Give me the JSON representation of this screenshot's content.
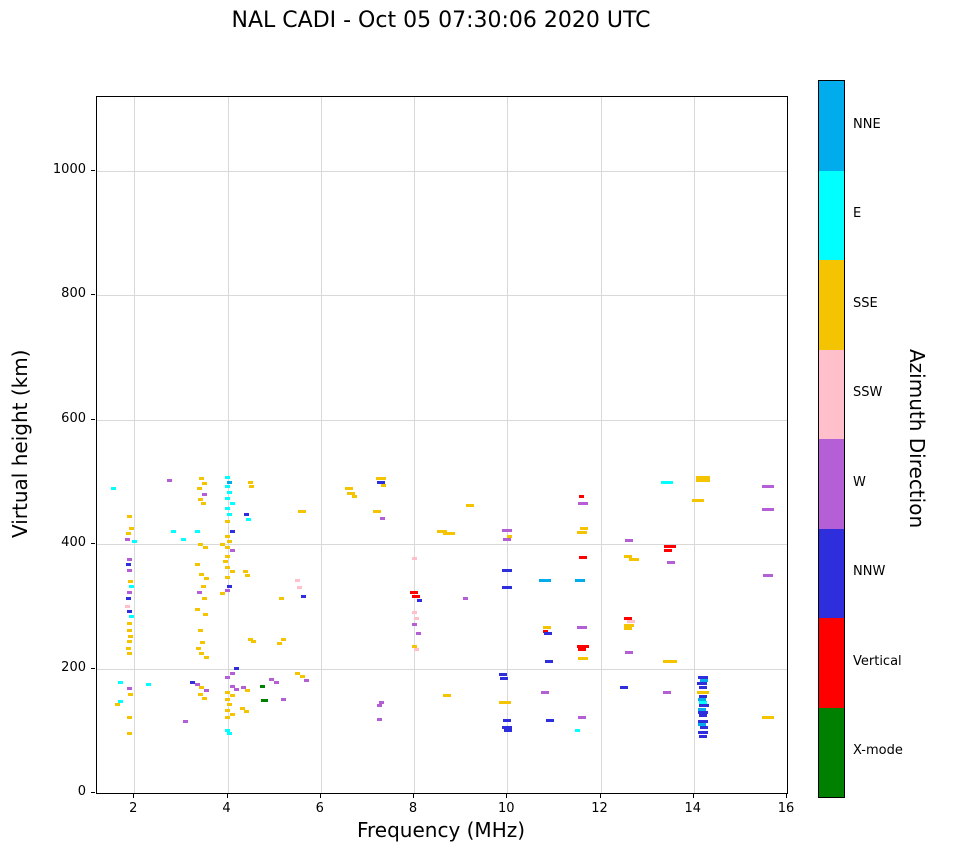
{
  "chart_data": {
    "type": "scatter",
    "title": "NAL CADI - Oct 05 07:30:06 2020 UTC",
    "xlabel": "Frequency (MHz)",
    "ylabel": "Virtual height (km)",
    "xlim": [
      1.2,
      16
    ],
    "ylim": [
      0,
      1119
    ],
    "xticks": [
      2,
      4,
      6,
      8,
      10,
      12,
      14,
      16
    ],
    "yticks": [
      0,
      200,
      400,
      600,
      800,
      1000
    ],
    "grid": true,
    "colorbar": {
      "title": "Azimuth Direction",
      "categories": [
        {
          "label": "NNE",
          "color": "#00ACEC"
        },
        {
          "label": "E",
          "color": "#00FFFF"
        },
        {
          "label": "SSE",
          "color": "#F5C400"
        },
        {
          "label": "SSW",
          "color": "#FFBFCB"
        },
        {
          "label": "W",
          "color": "#B45FD6"
        },
        {
          "label": "NNW",
          "color": "#2E2EDC"
        },
        {
          "label": "Vertical",
          "color": "#FF0000"
        },
        {
          "label": "X-mode",
          "color": "#008000"
        }
      ]
    },
    "points": [
      [
        1.55,
        490,
        "E"
      ],
      [
        1.9,
        445,
        "SSE"
      ],
      [
        1.95,
        425,
        "SSE"
      ],
      [
        1.88,
        418,
        "SSE"
      ],
      [
        1.85,
        408,
        "W"
      ],
      [
        2.0,
        405,
        "E"
      ],
      [
        1.9,
        375,
        "W"
      ],
      [
        1.88,
        368,
        "NNW"
      ],
      [
        1.9,
        358,
        "W"
      ],
      [
        1.92,
        340,
        "SSE"
      ],
      [
        1.95,
        332,
        "E"
      ],
      [
        1.9,
        322,
        "W"
      ],
      [
        1.88,
        312,
        "NNW"
      ],
      [
        1.85,
        300,
        "SSW"
      ],
      [
        1.9,
        292,
        "NNW"
      ],
      [
        1.95,
        283,
        "E"
      ],
      [
        1.9,
        272,
        "SSE"
      ],
      [
        1.9,
        262,
        "SSE"
      ],
      [
        1.92,
        252,
        "SSE"
      ],
      [
        1.9,
        243,
        "SSE"
      ],
      [
        1.88,
        232,
        "SSE"
      ],
      [
        1.9,
        225,
        "SSE"
      ],
      [
        1.7,
        178,
        "E"
      ],
      [
        2.3,
        175,
        "E"
      ],
      [
        1.9,
        168,
        "W"
      ],
      [
        1.92,
        158,
        "SSE"
      ],
      [
        1.7,
        147,
        "E"
      ],
      [
        1.65,
        143,
        "SSE"
      ],
      [
        1.9,
        122,
        "SSE"
      ],
      [
        1.9,
        95,
        "SSE"
      ],
      [
        2.75,
        502,
        "W"
      ],
      [
        2.85,
        420,
        "E"
      ],
      [
        3.05,
        408,
        "E"
      ],
      [
        3.1,
        115,
        "W"
      ],
      [
        3.45,
        505,
        "SSE"
      ],
      [
        3.5,
        498,
        "SSE"
      ],
      [
        3.4,
        490,
        "SSE"
      ],
      [
        3.5,
        480,
        "W"
      ],
      [
        3.42,
        472,
        "SSE"
      ],
      [
        3.48,
        465,
        "SSE"
      ],
      [
        3.35,
        420,
        "E"
      ],
      [
        3.42,
        400,
        "SSE"
      ],
      [
        3.52,
        395,
        "SSE"
      ],
      [
        3.35,
        367,
        "SSE"
      ],
      [
        3.45,
        352,
        "SSE"
      ],
      [
        3.55,
        345,
        "SSE"
      ],
      [
        3.48,
        332,
        "SSE"
      ],
      [
        3.4,
        322,
        "W"
      ],
      [
        3.5,
        312,
        "SSE"
      ],
      [
        3.35,
        295,
        "SSE"
      ],
      [
        3.52,
        287,
        "SSE"
      ],
      [
        3.42,
        262,
        "SSE"
      ],
      [
        3.46,
        242,
        "SSE"
      ],
      [
        3.38,
        232,
        "SSE"
      ],
      [
        3.45,
        225,
        "SSE"
      ],
      [
        3.55,
        218,
        "SSE"
      ],
      [
        3.25,
        178,
        "NNW"
      ],
      [
        3.35,
        174,
        "W"
      ],
      [
        3.45,
        170,
        "SSE"
      ],
      [
        3.55,
        165,
        "W"
      ],
      [
        3.42,
        158,
        "SSE"
      ],
      [
        3.5,
        152,
        "SSE"
      ],
      [
        4.0,
        507,
        "E"
      ],
      [
        4.05,
        500,
        "NNE"
      ],
      [
        4.0,
        492,
        "E"
      ],
      [
        4.05,
        483,
        "E"
      ],
      [
        4.0,
        474,
        "E"
      ],
      [
        4.1,
        466,
        "E"
      ],
      [
        4.0,
        457,
        "E"
      ],
      [
        4.05,
        447,
        "E"
      ],
      [
        4.0,
        437,
        "SSE"
      ],
      [
        4.1,
        420,
        "NNW"
      ],
      [
        4.0,
        412,
        "SSE"
      ],
      [
        4.05,
        405,
        "SSE"
      ],
      [
        3.9,
        400,
        "SSE"
      ],
      [
        4.0,
        395,
        "SSE"
      ],
      [
        4.1,
        390,
        "W"
      ],
      [
        4.0,
        381,
        "SSE"
      ],
      [
        3.95,
        372,
        "SSE"
      ],
      [
        4.0,
        362,
        "SSE"
      ],
      [
        4.1,
        356,
        "SSE"
      ],
      [
        4.0,
        346,
        "SSE"
      ],
      [
        4.05,
        332,
        "NNW"
      ],
      [
        4.0,
        325,
        "W"
      ],
      [
        3.9,
        320,
        "SSE"
      ],
      [
        4.2,
        200,
        "NNW"
      ],
      [
        4.1,
        192,
        "W"
      ],
      [
        4.0,
        186,
        "W"
      ],
      [
        4.1,
        172,
        "W"
      ],
      [
        4.2,
        166,
        "W"
      ],
      [
        4.0,
        161,
        "SSE"
      ],
      [
        4.1,
        156,
        "SSE"
      ],
      [
        4.0,
        150,
        "SSE"
      ],
      [
        4.05,
        142,
        "SSE"
      ],
      [
        4.0,
        133,
        "SSE"
      ],
      [
        4.1,
        127,
        "SSE"
      ],
      [
        4.0,
        121,
        "SSE"
      ],
      [
        4.0,
        101,
        "E"
      ],
      [
        4.05,
        95,
        "E"
      ],
      [
        4.5,
        500,
        "SSE"
      ],
      [
        4.52,
        492,
        "SSE"
      ],
      [
        4.4,
        447,
        "NNW"
      ],
      [
        4.46,
        440,
        "E"
      ],
      [
        4.38,
        356,
        "SSE"
      ],
      [
        4.42,
        350,
        "SSE"
      ],
      [
        4.5,
        247,
        "SSE"
      ],
      [
        4.55,
        243,
        "SSE"
      ],
      [
        4.35,
        170,
        "W"
      ],
      [
        4.42,
        165,
        "SSE"
      ],
      [
        4.32,
        136,
        "SSE"
      ],
      [
        4.4,
        131,
        "SSE"
      ],
      [
        4.75,
        172,
        "X-mode"
      ],
      [
        4.8,
        148,
        "X-mode",
        7
      ],
      [
        4.95,
        182,
        "W"
      ],
      [
        5.05,
        177,
        "W"
      ],
      [
        5.15,
        312,
        "SSE"
      ],
      [
        5.2,
        247,
        "SSE"
      ],
      [
        5.12,
        241,
        "SSE"
      ],
      [
        5.2,
        150,
        "W"
      ],
      [
        5.6,
        452,
        "SSE",
        8
      ],
      [
        5.5,
        341,
        "SSW"
      ],
      [
        5.55,
        331,
        "SSW"
      ],
      [
        5.62,
        316,
        "NNW"
      ],
      [
        5.5,
        192,
        "SSE"
      ],
      [
        5.6,
        187,
        "SSE"
      ],
      [
        5.7,
        181,
        "W"
      ],
      [
        6.6,
        490,
        "SSE",
        8
      ],
      [
        6.65,
        481,
        "SSE",
        8
      ],
      [
        6.72,
        476,
        "SSE"
      ],
      [
        7.3,
        506,
        "SSE",
        10
      ],
      [
        7.3,
        500,
        "NNW",
        8
      ],
      [
        7.35,
        494,
        "SSE"
      ],
      [
        7.2,
        452,
        "SSE",
        8
      ],
      [
        7.32,
        441,
        "W"
      ],
      [
        7.3,
        146,
        "W"
      ],
      [
        7.27,
        140,
        "W"
      ],
      [
        7.25,
        118,
        "W"
      ],
      [
        8.0,
        377,
        "SSW"
      ],
      [
        8.0,
        322,
        "Vertical",
        8
      ],
      [
        8.05,
        316,
        "Vertical",
        8
      ],
      [
        8.12,
        310,
        "NNW"
      ],
      [
        8.0,
        291,
        "SSW"
      ],
      [
        8.05,
        281,
        "SSW"
      ],
      [
        8.0,
        271,
        "W"
      ],
      [
        8.1,
        256,
        "W"
      ],
      [
        8.0,
        236,
        "SSE"
      ],
      [
        8.05,
        230,
        "SSW"
      ],
      [
        8.6,
        421,
        "SSE",
        10
      ],
      [
        8.75,
        418,
        "SSE",
        12
      ],
      [
        8.7,
        156,
        "SSE",
        8
      ],
      [
        9.2,
        462,
        "SSE",
        8
      ],
      [
        9.1,
        312,
        "W"
      ],
      [
        10.0,
        422,
        "W",
        10
      ],
      [
        10.05,
        412,
        "SSE"
      ],
      [
        10.0,
        408,
        "W",
        8
      ],
      [
        9.9,
        190,
        "NNW",
        8
      ],
      [
        9.92,
        184,
        "NNW",
        8
      ],
      [
        10.0,
        357,
        "NNW",
        10
      ],
      [
        10.0,
        331,
        "NNW",
        10
      ],
      [
        9.95,
        146,
        "SSE",
        12
      ],
      [
        10.0,
        117,
        "NNW",
        8
      ],
      [
        10.0,
        106,
        "NNW",
        10
      ],
      [
        10.02,
        100,
        "NNW",
        8
      ],
      [
        10.8,
        341,
        "NNE",
        12
      ],
      [
        10.85,
        266,
        "SSE",
        8
      ],
      [
        10.82,
        259,
        "Vertical"
      ],
      [
        10.87,
        256,
        "NNW",
        8
      ],
      [
        10.9,
        211,
        "NNW",
        8
      ],
      [
        10.8,
        161,
        "W",
        8
      ],
      [
        10.92,
        116,
        "NNW",
        8
      ],
      [
        11.6,
        476,
        "Vertical"
      ],
      [
        11.62,
        466,
        "W",
        10
      ],
      [
        11.65,
        426,
        "SSE",
        8
      ],
      [
        11.6,
        419,
        "SSE",
        10
      ],
      [
        11.62,
        379,
        "Vertical",
        8
      ],
      [
        11.55,
        341,
        "NNE",
        10
      ],
      [
        11.6,
        266,
        "W",
        10
      ],
      [
        11.62,
        236,
        "Vertical",
        12
      ],
      [
        11.6,
        230,
        "Vertical",
        8
      ],
      [
        11.62,
        216,
        "SSE",
        10
      ],
      [
        11.6,
        121,
        "W",
        8
      ],
      [
        11.5,
        100,
        "E"
      ],
      [
        12.62,
        406,
        "W",
        8
      ],
      [
        12.6,
        381,
        "SSE",
        8
      ],
      [
        12.72,
        376,
        "SSE",
        10
      ],
      [
        12.6,
        281,
        "Vertical",
        8
      ],
      [
        12.65,
        275,
        "SSW",
        8
      ],
      [
        12.62,
        270,
        "SSE",
        10
      ],
      [
        12.6,
        264,
        "SSE",
        8
      ],
      [
        12.62,
        226,
        "W",
        8
      ],
      [
        12.5,
        169,
        "NNW",
        8
      ],
      [
        13.42,
        500,
        "E",
        12
      ],
      [
        13.5,
        396,
        "Vertical",
        12
      ],
      [
        13.45,
        390,
        "Vertical",
        8
      ],
      [
        13.52,
        371,
        "W",
        8
      ],
      [
        13.5,
        212,
        "SSE",
        14
      ],
      [
        13.42,
        161,
        "W",
        8
      ],
      [
        14.2,
        507,
        "SSE",
        14
      ],
      [
        14.2,
        502,
        "SSE",
        14
      ],
      [
        14.1,
        471,
        "SSE",
        12
      ],
      [
        14.2,
        186,
        "NNW",
        10
      ],
      [
        14.22,
        181,
        "NNE",
        8
      ],
      [
        14.18,
        176,
        "NNW",
        10
      ],
      [
        14.2,
        170,
        "NNW",
        8
      ],
      [
        14.2,
        161,
        "SSE",
        12
      ],
      [
        14.2,
        155,
        "NNW",
        8
      ],
      [
        14.18,
        150,
        "NNE",
        8
      ],
      [
        14.2,
        145,
        "E",
        8
      ],
      [
        14.22,
        140,
        "NNW",
        10
      ],
      [
        14.18,
        135,
        "NNE",
        8
      ],
      [
        14.2,
        130,
        "NNW",
        10
      ],
      [
        14.2,
        124,
        "NNW",
        8
      ],
      [
        14.2,
        115,
        "NNW",
        10
      ],
      [
        14.18,
        110,
        "NNE",
        8
      ],
      [
        14.22,
        105,
        "NNW",
        8
      ],
      [
        14.2,
        97,
        "NNW",
        10
      ],
      [
        14.2,
        91,
        "NNW",
        8
      ],
      [
        15.6,
        493,
        "W",
        12
      ],
      [
        15.6,
        455,
        "W",
        12
      ],
      [
        15.6,
        350,
        "W",
        10
      ],
      [
        15.6,
        122,
        "SSE",
        12
      ]
    ]
  }
}
